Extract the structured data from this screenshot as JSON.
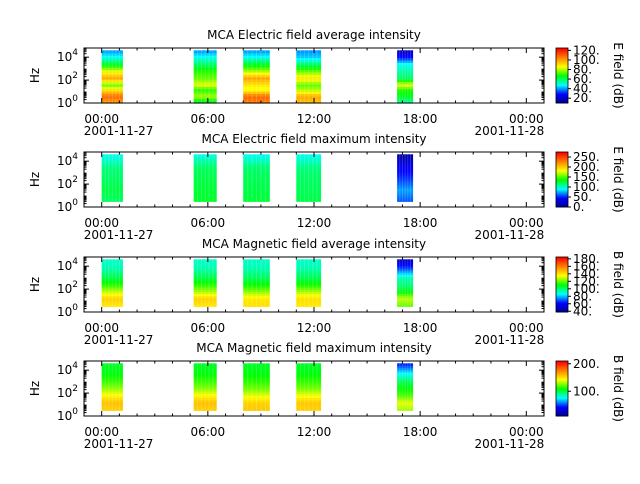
{
  "colors": {
    "colormap": [
      "#00008f",
      "#0000ff",
      "#00ffff",
      "#00ff00",
      "#ffff00",
      "#ff8000",
      "#ff0000"
    ],
    "axis": "#000000",
    "background": "#ffffff"
  },
  "chart_data": [
    {
      "type": "heatmap",
      "title": "MCA  Electric field average intensity",
      "ylabel": "Hz",
      "colorbar_label": "E field (dB)",
      "colorbar_range": [
        10,
        125
      ],
      "colorbar_ticks": [
        "120.",
        "100.",
        "80.",
        "60.",
        "40.",
        "20."
      ],
      "colorbar_tick_values": [
        120,
        100,
        80,
        60,
        40,
        20
      ],
      "y_ticks": [
        "10",
        "10",
        "10"
      ],
      "y_tick_exps": [
        "4",
        "2",
        "0"
      ],
      "y_tick_values": [
        4,
        2,
        0
      ],
      "ylim_log10": [
        0,
        4.8
      ],
      "x_ticks": [
        "00:00",
        "06:00",
        "12:00",
        "18:00",
        "00:00"
      ],
      "x_tick_hours": [
        0,
        6,
        12,
        18,
        24
      ],
      "xlim_hours": [
        -1,
        25
      ],
      "date_start": "2001-11-27",
      "date_end": "2001-11-28",
      "segments": [
        {
          "start_hour": 0.0,
          "end_hour": 1.2,
          "top_log10": 4.6,
          "profile": [
            [
              0.0,
              100
            ],
            [
              0.6,
              110
            ],
            [
              1.2,
              90
            ],
            [
              1.6,
              75
            ],
            [
              2.2,
              100
            ],
            [
              2.8,
              85
            ],
            [
              3.4,
              65
            ],
            [
              4.0,
              50
            ],
            [
              4.6,
              40
            ]
          ]
        },
        {
          "start_hour": 5.2,
          "end_hour": 6.5,
          "top_log10": 4.6,
          "profile": [
            [
              0.0,
              60
            ],
            [
              0.6,
              80
            ],
            [
              1.2,
              70
            ],
            [
              1.6,
              85
            ],
            [
              2.2,
              75
            ],
            [
              2.8,
              70
            ],
            [
              3.4,
              60
            ],
            [
              4.0,
              50
            ],
            [
              4.6,
              40
            ]
          ]
        },
        {
          "start_hour": 8.0,
          "end_hour": 9.5,
          "top_log10": 4.6,
          "profile": [
            [
              0.0,
              105
            ],
            [
              0.6,
              110
            ],
            [
              1.2,
              85
            ],
            [
              1.6,
              90
            ],
            [
              2.2,
              100
            ],
            [
              2.8,
              80
            ],
            [
              3.4,
              65
            ],
            [
              4.0,
              50
            ],
            [
              4.6,
              40
            ]
          ]
        },
        {
          "start_hour": 11.0,
          "end_hour": 12.4,
          "top_log10": 4.6,
          "profile": [
            [
              0.0,
              95
            ],
            [
              0.6,
              100
            ],
            [
              1.2,
              80
            ],
            [
              1.6,
              75
            ],
            [
              2.2,
              90
            ],
            [
              2.8,
              75
            ],
            [
              3.4,
              60
            ],
            [
              4.0,
              45
            ],
            [
              4.6,
              40
            ]
          ]
        },
        {
          "start_hour": 16.7,
          "end_hour": 17.6,
          "top_log10": 4.6,
          "profile": [
            [
              0.0,
              55
            ],
            [
              0.6,
              65
            ],
            [
              1.2,
              70
            ],
            [
              1.6,
              85
            ],
            [
              2.2,
              60
            ],
            [
              2.8,
              55
            ],
            [
              3.4,
              50
            ],
            [
              4.0,
              30
            ],
            [
              4.6,
              20
            ]
          ]
        }
      ]
    },
    {
      "type": "heatmap",
      "title": "MCA  Electric field maximum intensity",
      "ylabel": "Hz",
      "colorbar_label": "E field (dB)",
      "colorbar_range": [
        0,
        275
      ],
      "colorbar_ticks": [
        "250.",
        "200.",
        "150.",
        "100.",
        "50.",
        "0."
      ],
      "colorbar_tick_values": [
        250,
        200,
        150,
        100,
        50,
        0
      ],
      "y_ticks": [
        "10",
        "10",
        "10"
      ],
      "y_tick_exps": [
        "4",
        "2",
        "0"
      ],
      "y_tick_values": [
        4,
        2,
        0
      ],
      "ylim_log10": [
        0,
        4.8
      ],
      "x_ticks": [
        "00:00",
        "06:00",
        "12:00",
        "18:00",
        "00:00"
      ],
      "x_tick_hours": [
        0,
        6,
        12,
        18,
        24
      ],
      "xlim_hours": [
        -1,
        25
      ],
      "date_start": "2001-11-27",
      "date_end": "2001-11-28",
      "segments": [
        {
          "start_hour": 0.0,
          "end_hour": 1.2,
          "top_log10": 4.6,
          "bottom_log10": 0.5,
          "profile": [
            [
              0.5,
              120
            ],
            [
              1.5,
              125
            ],
            [
              2.5,
              120
            ],
            [
              3.5,
              115
            ],
            [
              4.2,
              100
            ],
            [
              4.6,
              95
            ]
          ]
        },
        {
          "start_hour": 5.2,
          "end_hour": 6.5,
          "top_log10": 4.6,
          "bottom_log10": 0.5,
          "profile": [
            [
              0.5,
              130
            ],
            [
              1.5,
              128
            ],
            [
              2.5,
              125
            ],
            [
              3.5,
              120
            ],
            [
              4.2,
              105
            ],
            [
              4.6,
              95
            ]
          ]
        },
        {
          "start_hour": 8.0,
          "end_hour": 9.5,
          "top_log10": 4.6,
          "bottom_log10": 0.5,
          "profile": [
            [
              0.5,
              128
            ],
            [
              1.5,
              125
            ],
            [
              2.5,
              122
            ],
            [
              3.5,
              118
            ],
            [
              4.2,
              100
            ],
            [
              4.6,
              95
            ]
          ]
        },
        {
          "start_hour": 11.0,
          "end_hour": 12.4,
          "top_log10": 4.6,
          "bottom_log10": 0.5,
          "profile": [
            [
              0.5,
              125
            ],
            [
              1.5,
              122
            ],
            [
              2.5,
              120
            ],
            [
              3.5,
              115
            ],
            [
              4.2,
              100
            ],
            [
              4.6,
              95
            ]
          ]
        },
        {
          "start_hour": 16.7,
          "end_hour": 17.6,
          "top_log10": 4.6,
          "bottom_log10": 0.5,
          "profile": [
            [
              0.5,
              60
            ],
            [
              1.5,
              75
            ],
            [
              2.5,
              55
            ],
            [
              3.5,
              40
            ],
            [
              4.2,
              20
            ],
            [
              4.6,
              10
            ]
          ]
        }
      ]
    },
    {
      "type": "heatmap",
      "title": "MCA  Magnetic field average intensity",
      "ylabel": "Hz",
      "colorbar_label": "B field (dB)",
      "colorbar_range": [
        38,
        185
      ],
      "colorbar_ticks": [
        "180.",
        "160.",
        "140.",
        "120.",
        "100.",
        "80.",
        "60.",
        "40."
      ],
      "colorbar_tick_values": [
        180,
        160,
        140,
        120,
        100,
        80,
        60,
        40
      ],
      "y_ticks": [
        "10",
        "10",
        "10"
      ],
      "y_tick_exps": [
        "4",
        "2",
        "0"
      ],
      "y_tick_values": [
        4,
        2,
        0
      ],
      "ylim_log10": [
        0,
        4.8
      ],
      "x_ticks": [
        "00:00",
        "06:00",
        "12:00",
        "18:00",
        "00:00"
      ],
      "x_tick_hours": [
        0,
        6,
        12,
        18,
        24
      ],
      "xlim_hours": [
        -1,
        25
      ],
      "date_start": "2001-11-27",
      "date_end": "2001-11-28",
      "segments": [
        {
          "start_hour": 0.0,
          "end_hour": 1.2,
          "top_log10": 4.6,
          "bottom_log10": 0.5,
          "profile": [
            [
              0.5,
              140
            ],
            [
              1.2,
              145
            ],
            [
              1.8,
              130
            ],
            [
              2.4,
              115
            ],
            [
              3.0,
              105
            ],
            [
              3.8,
              95
            ],
            [
              4.6,
              92
            ]
          ]
        },
        {
          "start_hour": 5.2,
          "end_hour": 6.5,
          "top_log10": 4.6,
          "bottom_log10": 0.5,
          "profile": [
            [
              0.5,
              140
            ],
            [
              1.2,
              145
            ],
            [
              1.8,
              128
            ],
            [
              2.4,
              115
            ],
            [
              3.0,
              105
            ],
            [
              3.8,
              95
            ],
            [
              4.6,
              92
            ]
          ]
        },
        {
          "start_hour": 8.0,
          "end_hour": 9.5,
          "top_log10": 4.6,
          "bottom_log10": 0.5,
          "profile": [
            [
              0.5,
              142
            ],
            [
              1.2,
              140
            ],
            [
              1.8,
              125
            ],
            [
              2.4,
              112
            ],
            [
              3.0,
              103
            ],
            [
              3.8,
              95
            ],
            [
              4.6,
              92
            ]
          ]
        },
        {
          "start_hour": 11.0,
          "end_hour": 12.4,
          "top_log10": 4.6,
          "bottom_log10": 0.5,
          "profile": [
            [
              0.5,
              140
            ],
            [
              1.2,
              142
            ],
            [
              1.8,
              128
            ],
            [
              2.4,
              113
            ],
            [
              3.0,
              104
            ],
            [
              3.8,
              95
            ],
            [
              4.6,
              92
            ]
          ]
        },
        {
          "start_hour": 16.7,
          "end_hour": 17.6,
          "top_log10": 4.6,
          "bottom_log10": 0.5,
          "profile": [
            [
              0.5,
              120
            ],
            [
              1.2,
              130
            ],
            [
              1.8,
              110
            ],
            [
              2.4,
              100
            ],
            [
              3.0,
              95
            ],
            [
              3.8,
              70
            ],
            [
              4.6,
              50
            ]
          ]
        }
      ]
    },
    {
      "type": "heatmap",
      "title": "MCA  Magnetic field maximum intensity",
      "ylabel": "Hz",
      "colorbar_label": "B field (dB)",
      "colorbar_range": [
        10,
        210
      ],
      "colorbar_ticks": [
        "200.",
        "100."
      ],
      "colorbar_tick_values": [
        200,
        100
      ],
      "y_ticks": [
        "10",
        "10",
        "10"
      ],
      "y_tick_exps": [
        "4",
        "2",
        "0"
      ],
      "y_tick_values": [
        4,
        2,
        0
      ],
      "ylim_log10": [
        0,
        4.8
      ],
      "x_ticks": [
        "00:00",
        "06:00",
        "12:00",
        "18:00",
        "00:00"
      ],
      "x_tick_hours": [
        0,
        6,
        12,
        18,
        24
      ],
      "xlim_hours": [
        -1,
        25
      ],
      "date_start": "2001-11-27",
      "date_end": "2001-11-28",
      "segments": [
        {
          "start_hour": 0.0,
          "end_hour": 1.2,
          "top_log10": 4.6,
          "bottom_log10": 0.5,
          "profile": [
            [
              0.5,
              155
            ],
            [
              1.2,
              160
            ],
            [
              1.8,
              145
            ],
            [
              2.4,
              130
            ],
            [
              3.0,
              118
            ],
            [
              3.8,
              108
            ],
            [
              4.6,
              105
            ]
          ]
        },
        {
          "start_hour": 5.2,
          "end_hour": 6.5,
          "top_log10": 4.6,
          "bottom_log10": 0.5,
          "profile": [
            [
              0.5,
              155
            ],
            [
              1.2,
              160
            ],
            [
              1.8,
              145
            ],
            [
              2.4,
              128
            ],
            [
              3.0,
              118
            ],
            [
              3.8,
              108
            ],
            [
              4.6,
              105
            ]
          ]
        },
        {
          "start_hour": 8.0,
          "end_hour": 9.5,
          "top_log10": 4.6,
          "bottom_log10": 0.5,
          "profile": [
            [
              0.5,
              158
            ],
            [
              1.2,
              155
            ],
            [
              1.8,
              140
            ],
            [
              2.4,
              125
            ],
            [
              3.0,
              116
            ],
            [
              3.8,
              108
            ],
            [
              4.6,
              105
            ]
          ]
        },
        {
          "start_hour": 11.0,
          "end_hour": 12.4,
          "top_log10": 4.6,
          "bottom_log10": 0.5,
          "profile": [
            [
              0.5,
              155
            ],
            [
              1.2,
              158
            ],
            [
              1.8,
              142
            ],
            [
              2.4,
              126
            ],
            [
              3.0,
              117
            ],
            [
              3.8,
              108
            ],
            [
              4.6,
              105
            ]
          ]
        },
        {
          "start_hour": 16.7,
          "end_hour": 17.6,
          "top_log10": 4.6,
          "bottom_log10": 0.5,
          "profile": [
            [
              0.5,
              130
            ],
            [
              1.2,
              140
            ],
            [
              1.8,
              120
            ],
            [
              2.4,
              110
            ],
            [
              3.0,
              100
            ],
            [
              3.8,
              75
            ],
            [
              4.6,
              45
            ]
          ]
        }
      ]
    }
  ]
}
